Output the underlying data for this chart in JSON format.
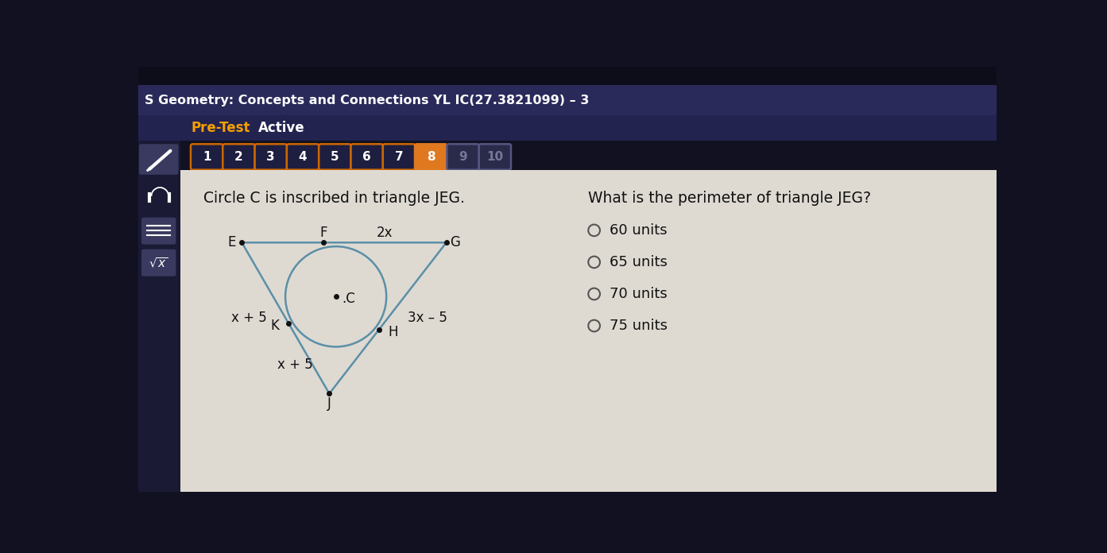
{
  "title_bar_top_color": "#111122",
  "title_bar_color": "#2a2a5a",
  "title_text": "S Geometry: Concepts and Connections YL IC(27.3821099) – 3",
  "subtitle_bar_color": "#2a2a5a",
  "pre_test_text": "Pre-Test",
  "active_text": "Active",
  "nav_numbers": [
    "1",
    "2",
    "3",
    "4",
    "5",
    "6",
    "7",
    "8",
    "9",
    "10"
  ],
  "nav_active_idx": 7,
  "nav_box_border": "#cc6600",
  "nav_box_active_fill": "#e07820",
  "nav_box_inactive_fill": "#1e1e40",
  "nav_dim_fill": "#2a2a4a",
  "content_bg": "#dedad2",
  "sidebar_bg": "#1a1a35",
  "question_text": "Circle C is inscribed in triangle JEG.",
  "right_question_text": "What is the perimeter of triangle JEG?",
  "answer_choices": [
    "60 units",
    "65 units",
    "70 units",
    "75 units"
  ],
  "triangle_color": "#5b8fa8",
  "circle_color": "#5b8fa8",
  "label_color": "#111111",
  "side_label_EJ": "x + 5",
  "side_label_JG": "x + 5",
  "side_label_FG": "2x",
  "side_label_GH": "3x – 5"
}
